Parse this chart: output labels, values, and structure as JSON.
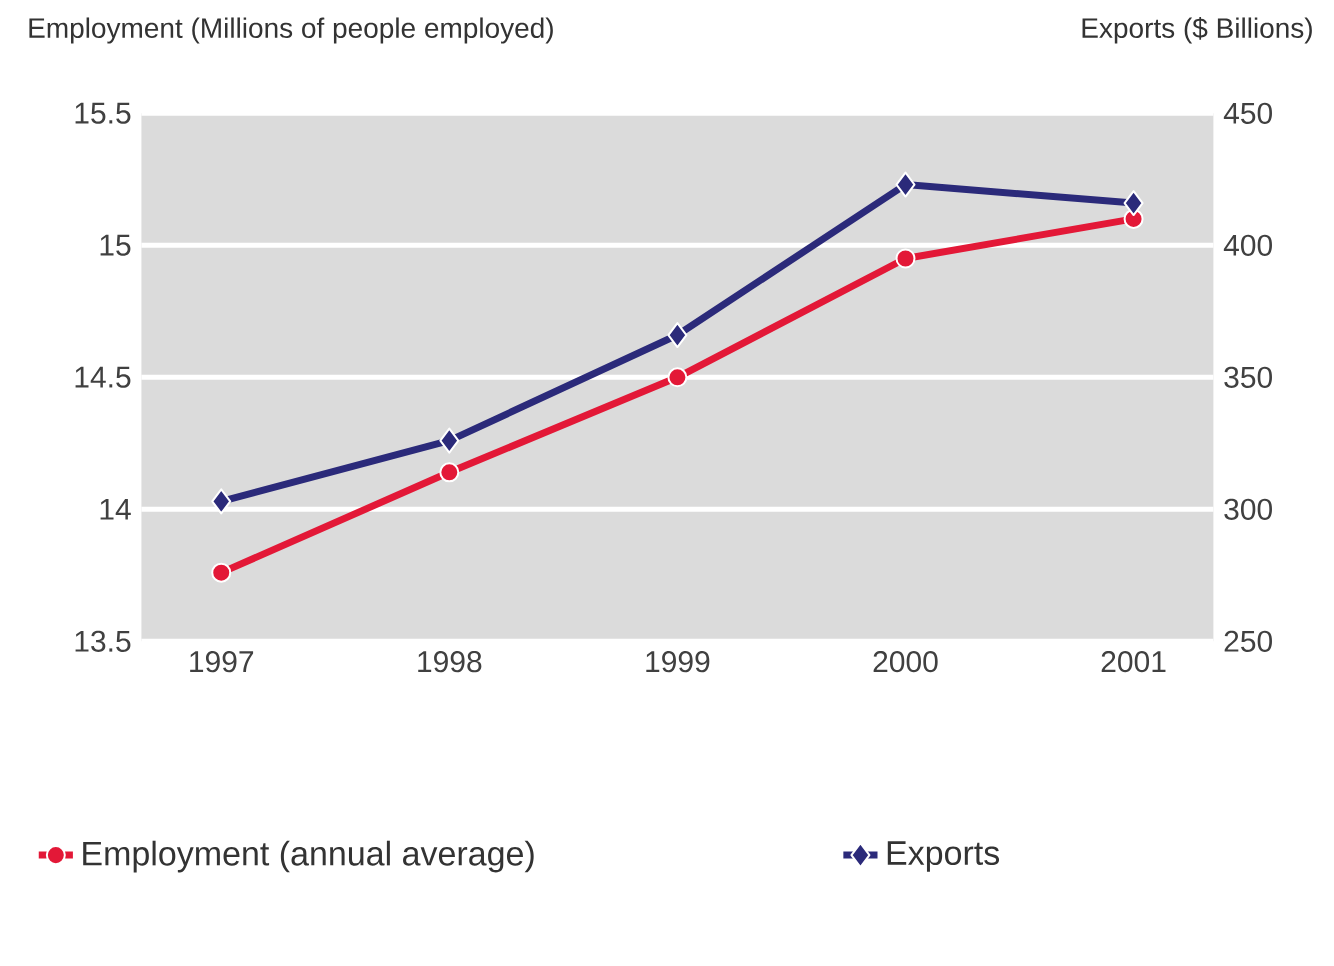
{
  "chart_data": {
    "type": "line",
    "ylabel": "Employment (Millions of people employed)",
    "y2label": "Exports ($ Billions)",
    "categories": [
      "1997",
      "1998",
      "1999",
      "2000",
      "2001"
    ],
    "series": [
      {
        "name": "Employment (annual average)",
        "color": "#e31837",
        "marker": "circle",
        "values": [
          13.76,
          14.14,
          14.5,
          14.95,
          15.1
        ]
      },
      {
        "name": "Exports",
        "color": "#2b2a7a",
        "marker": "diamond",
        "axis": "y2",
        "values": [
          303,
          326,
          366,
          423,
          416
        ]
      }
    ],
    "ylim": [
      13.5,
      15.5
    ],
    "yticks": [
      13.5,
      14,
      14.5,
      15,
      15.5
    ],
    "y2lim": [
      250,
      450
    ],
    "y2ticks": [
      250,
      300,
      350,
      400,
      450
    ],
    "grid": "y",
    "legend": "bottom"
  }
}
